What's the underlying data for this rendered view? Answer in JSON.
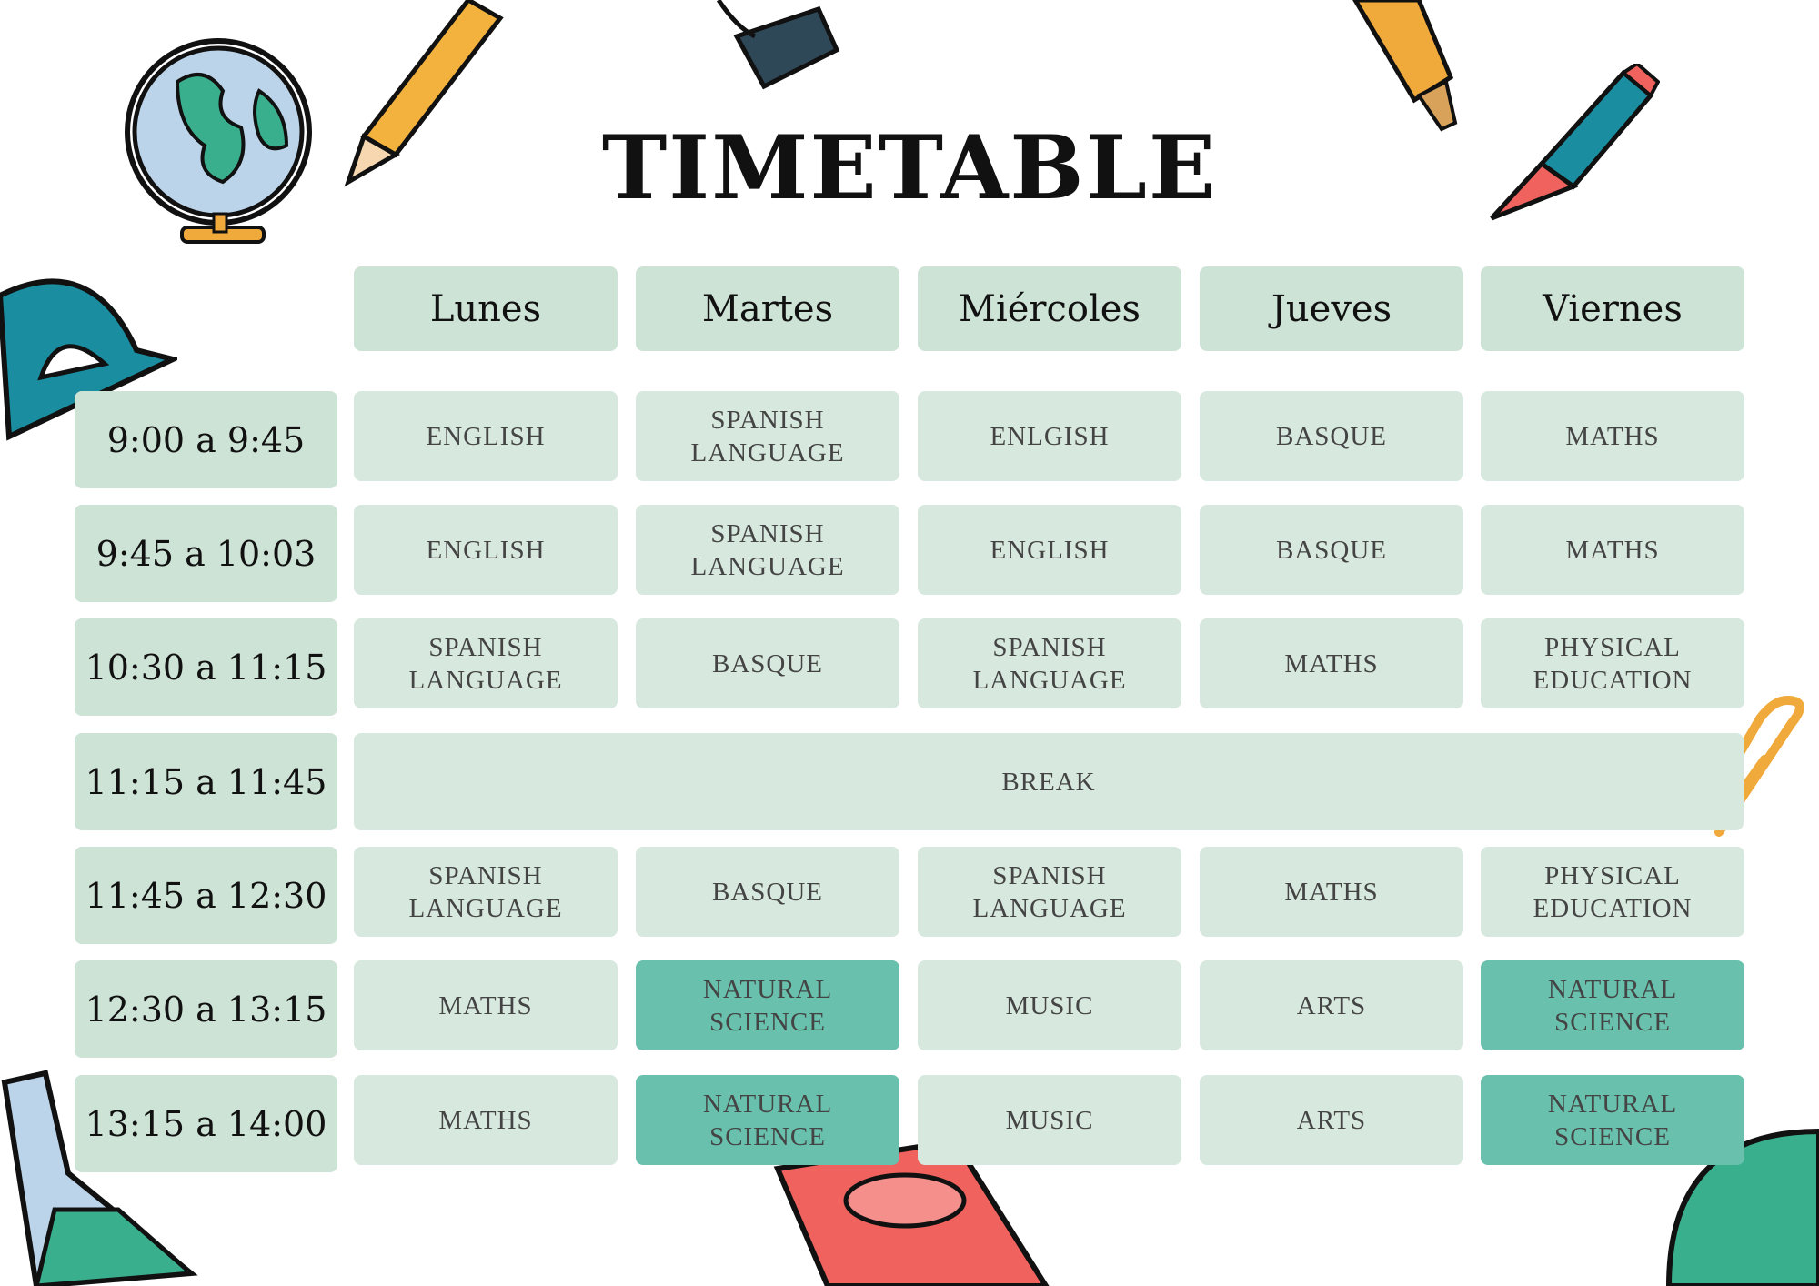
{
  "title": "TIMETABLE",
  "days": [
    "Lunes",
    "Martes",
    "Miércoles",
    "Jueves",
    "Viernes"
  ],
  "rows": [
    {
      "time": "9:00 a 9:45",
      "subjects": [
        "ENGLISH",
        "SPANISH LANGUAGE",
        "ENLGISH",
        "BASQUE",
        "MATHS"
      ]
    },
    {
      "time": "9:45 a 10:03",
      "subjects": [
        "ENGLISH",
        "SPANISH LANGUAGE",
        "ENGLISH",
        "BASQUE",
        "MATHS"
      ]
    },
    {
      "time": "10:30 a 11:15",
      "subjects": [
        "SPANISH LANGUAGE",
        "BASQUE",
        "SPANISH LANGUAGE",
        "MATHS",
        "PHYSICAL EDUCATION"
      ]
    },
    {
      "time": "11:15 a 11:45",
      "break": "BREAK"
    },
    {
      "time": "11:45 a 12:30",
      "subjects": [
        "SPANISH LANGUAGE",
        "BASQUE",
        "SPANISH LANGUAGE",
        "MATHS",
        "PHYSICAL EDUCATION"
      ]
    },
    {
      "time": "12:30 a 13:15",
      "subjects": [
        "MATHS",
        "NATURAL SCIENCE",
        "MUSIC",
        "ARTS",
        "NATURAL SCIENCE"
      ]
    },
    {
      "time": "13:15 a 14:00",
      "subjects": [
        "MATHS",
        "NATURAL SCIENCE",
        "MUSIC",
        "ARTS",
        "NATURAL SCIENCE"
      ]
    }
  ],
  "highlighted_subject": "NATURAL SCIENCE",
  "colors": {
    "header": "#cde3d6",
    "cell": "#d7e8de",
    "highlight": "#68c0ad",
    "text": "#444444"
  },
  "decorations": [
    "globe-icon",
    "pencil-icon",
    "binder-clip-icon",
    "marker-icon",
    "crayon-icon",
    "protractor-icon",
    "paperclip-icon",
    "flask-icon",
    "book-icon",
    "backpack-icon"
  ]
}
